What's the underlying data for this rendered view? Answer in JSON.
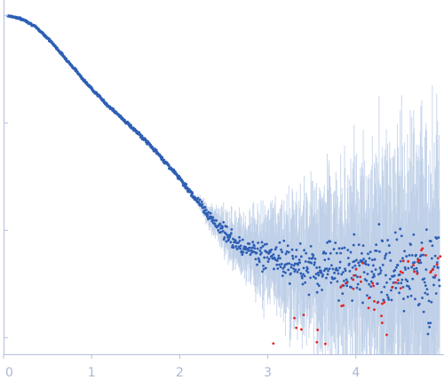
{
  "chart_data": {
    "type": "scatter",
    "title": "",
    "xlabel": "",
    "ylabel": "",
    "y_scale": "log",
    "grid": false,
    "legend": "none",
    "xlim": [
      0,
      4.97
    ],
    "ylim": [
      0.0007,
      1.4
    ],
    "x_ticks": [
      "0",
      "1",
      "2",
      "3",
      "4"
    ],
    "x_tick_values": [
      0,
      1,
      2,
      3,
      4
    ],
    "y_tick_values": [
      1,
      0.1,
      0.01,
      0.001
    ],
    "colors": {
      "point": "#2e5fb4",
      "error_bar": "#b8cbe6",
      "outlier_point": "#e02525",
      "axis": "#b3bfdc",
      "tick_text": "#a9b7d6"
    },
    "series": [
      {
        "marker": "dot",
        "color": "#2e5fb4",
        "x": [
          0.05,
          0.15,
          0.25,
          0.35,
          0.45,
          0.55,
          0.65,
          0.75,
          0.85,
          0.95,
          1.05,
          1.15,
          1.25,
          1.35,
          1.45,
          1.55,
          1.65,
          1.75,
          1.85,
          1.95,
          2.05,
          2.15,
          2.25,
          2.35,
          2.45,
          2.55,
          2.65,
          2.75,
          2.85,
          2.95,
          3.05,
          3.15,
          3.25,
          3.35,
          3.45,
          3.55,
          3.65,
          3.75,
          3.85,
          3.95,
          4.05,
          4.15,
          4.25,
          4.35,
          4.45,
          4.55,
          4.65,
          4.75,
          4.85,
          4.95
        ],
        "y": [
          1.0,
          0.96,
          0.9,
          0.8,
          0.68,
          0.56,
          0.45,
          0.36,
          0.29,
          0.23,
          0.19,
          0.155,
          0.13,
          0.11,
          0.092,
          0.077,
          0.064,
          0.052,
          0.042,
          0.034,
          0.027,
          0.021,
          0.017,
          0.013,
          0.0105,
          0.0088,
          0.0076,
          0.0068,
          0.0062,
          0.0058,
          0.0055,
          0.0052,
          0.005,
          0.0048,
          0.0047,
          0.0046,
          0.0045,
          0.0044,
          0.0043,
          0.0043,
          0.0042,
          0.0042,
          0.0041,
          0.0041,
          0.0041,
          0.004,
          0.004,
          0.004,
          0.004,
          0.004
        ]
      },
      {
        "marker": "dot",
        "color": "#e02525",
        "x": [
          3.1,
          3.35,
          3.6,
          3.85,
          3.95,
          4.05,
          4.15,
          4.25,
          4.35,
          4.45,
          4.55,
          4.65,
          4.75,
          4.85,
          4.95
        ],
        "y": [
          0.0008,
          0.0012,
          0.001,
          0.0025,
          0.0035,
          0.0042,
          0.0018,
          0.003,
          0.0015,
          0.0028,
          0.005,
          0.0045,
          0.006,
          0.0038,
          0.0055
        ]
      }
    ]
  }
}
